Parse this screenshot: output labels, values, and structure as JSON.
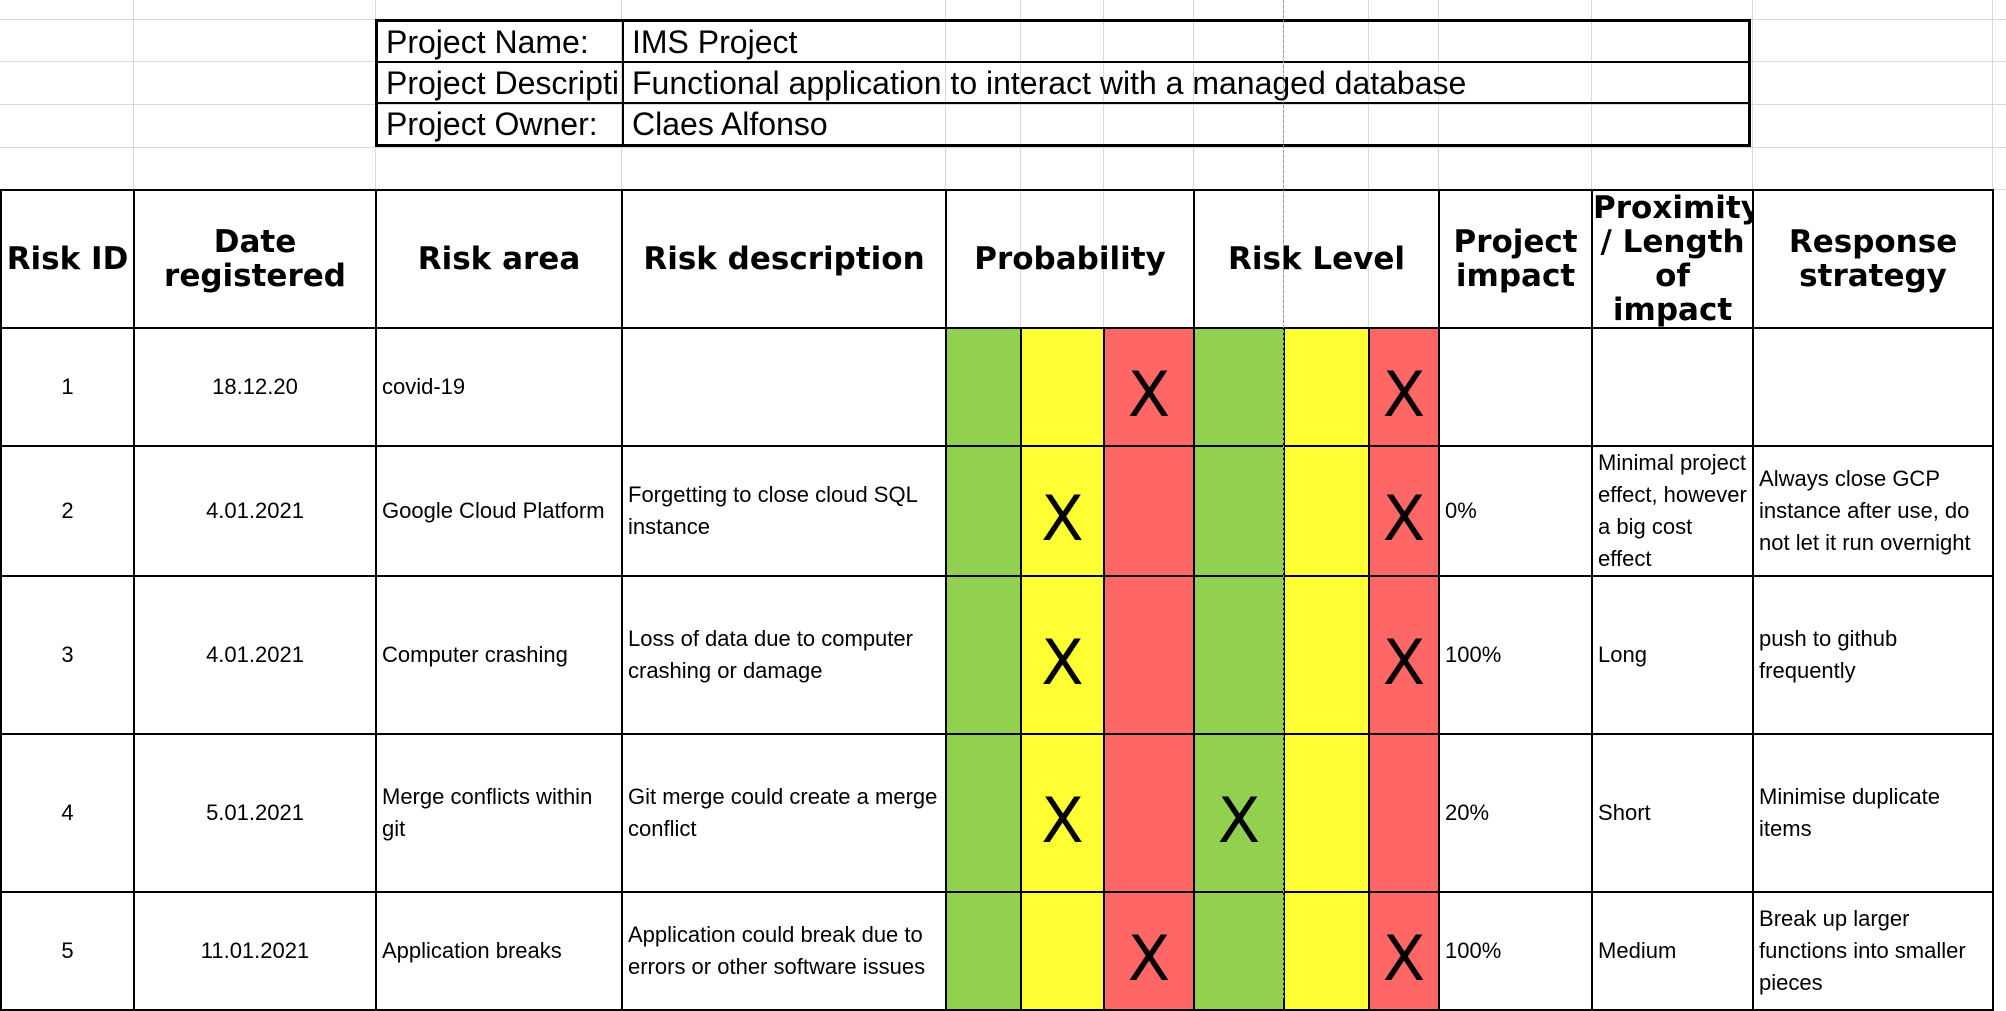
{
  "project": {
    "name_label": "Project Name:",
    "name_value": "IMS Project",
    "description_label": "Project Descripti",
    "description_value": "Functional application to interact with a managed database",
    "owner_label": "Project Owner:",
    "owner_value": "Claes Alfonso"
  },
  "headers": {
    "risk_id": "Risk ID",
    "date_registered": "Date registered",
    "risk_area": "Risk area",
    "risk_description": "Risk description",
    "probability": "Probability",
    "risk_level": "Risk Level",
    "project_impact": "Project impact",
    "proximity": "Proximity / Length of impact",
    "response_strategy": "Response strategy"
  },
  "colors": {
    "green": "#92d050",
    "yellow": "#ffff33",
    "red": "#ff6666"
  },
  "mark_symbol": "X",
  "rows": [
    {
      "id": "1",
      "date": "18.12.20",
      "area": "covid-19",
      "description": "",
      "probability": "red",
      "risk_level": "red",
      "impact": "",
      "proximity": "",
      "response": ""
    },
    {
      "id": "2",
      "date": "4.01.2021",
      "area": "Google Cloud Platform",
      "description": "Forgetting to close cloud SQL instance",
      "probability": "yellow",
      "risk_level": "red",
      "impact": "0%",
      "proximity": "Minimal project effect, however a big cost effect",
      "response": "Always close GCP instance after use, do not let it run overnight"
    },
    {
      "id": "3",
      "date": "4.01.2021",
      "area": "Computer crashing",
      "description": "Loss of data due to computer crashing or damage",
      "probability": "yellow",
      "risk_level": "red",
      "impact": "100%",
      "proximity": "Long",
      "response": "push to github frequently"
    },
    {
      "id": "4",
      "date": "5.01.2021",
      "area": "Merge conflicts within git",
      "description": "Git merge could create a merge conflict",
      "probability": "yellow",
      "risk_level": "green",
      "impact": "20%",
      "proximity": "Short",
      "response": "Minimise duplicate items"
    },
    {
      "id": "5",
      "date": "11.01.2021",
      "area": "Application breaks",
      "description": "Application could break due to errors or other software issues",
      "probability": "red",
      "risk_level": "red",
      "impact": "100%",
      "proximity": "Medium",
      "response": "Break up larger functions into smaller pieces"
    }
  ]
}
